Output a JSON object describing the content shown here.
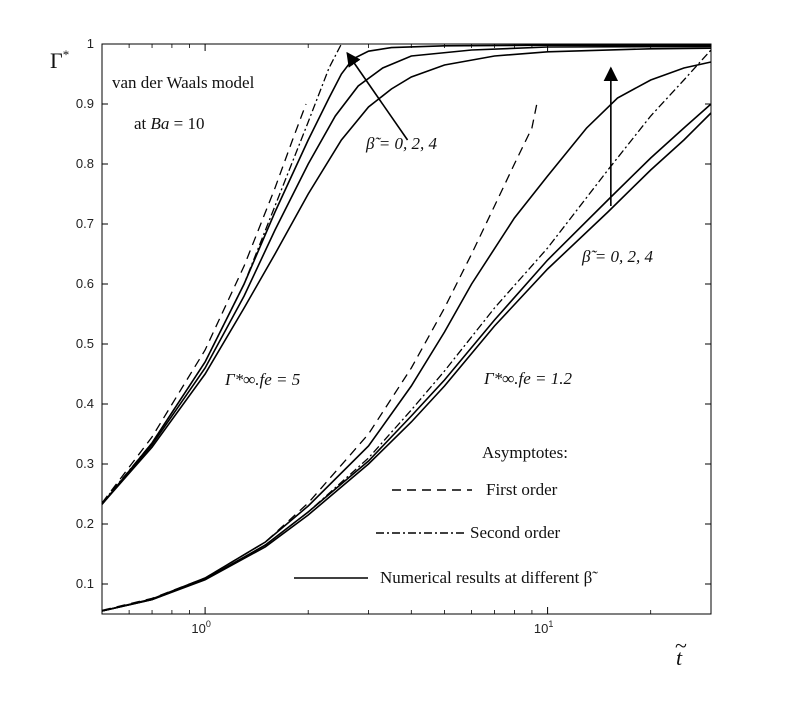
{
  "chart_data": {
    "type": "line",
    "x_scale": "log",
    "xlim": [
      0.5,
      30
    ],
    "ylim": [
      0.05,
      1.0
    ],
    "x_tick_labels": [
      {
        "x": 1,
        "base": "10",
        "exp": "0"
      },
      {
        "x": 10,
        "base": "10",
        "exp": "1"
      }
    ],
    "y_ticks": [
      0.1,
      0.2,
      0.3,
      0.4,
      0.5,
      0.6,
      0.7,
      0.8,
      0.9,
      1
    ],
    "y_tick_labels": [
      "0.1",
      "0.2",
      "0.3",
      "0.4",
      "0.5",
      "0.6",
      "0.7",
      "0.8",
      "0.9",
      "1"
    ],
    "ylabel_main": "Γ",
    "ylabel_sup": "*",
    "xlabel": "t",
    "xlabel_accent": "~",
    "annotations": {
      "model_line1": "van der Waals model",
      "model_line2_prefix": "at ",
      "model_line2_var": "Ba",
      "model_line2_suffix": " = 10",
      "beta_left": "β̃ = 0, 2, 4",
      "beta_right": "β̃ = 0, 2, 4",
      "group_high": "Γ*∞.fe = 5",
      "group_low": "Γ*∞.fe = 1.2"
    },
    "legend": {
      "title": "Asymptotes:",
      "entries": [
        {
          "label": "First order",
          "style": "dashed"
        },
        {
          "label": "Second order",
          "style": "dashdot"
        },
        {
          "label": "Numerical results at different β̃",
          "style": "solid"
        }
      ]
    },
    "series": [
      {
        "style": "solid",
        "points": [
          [
            0.5,
            0.233
          ],
          [
            0.7,
            0.335
          ],
          [
            1.0,
            0.47
          ],
          [
            1.3,
            0.6
          ],
          [
            1.6,
            0.72
          ],
          [
            2.0,
            0.84
          ],
          [
            2.3,
            0.91
          ],
          [
            2.5,
            0.95
          ],
          [
            2.7,
            0.975
          ],
          [
            3.0,
            0.988
          ],
          [
            3.5,
            0.994
          ],
          [
            5,
            0.997
          ],
          [
            10,
            0.998
          ],
          [
            30,
            0.998
          ]
        ]
      },
      {
        "style": "solid",
        "points": [
          [
            0.5,
            0.233
          ],
          [
            0.7,
            0.332
          ],
          [
            1.0,
            0.46
          ],
          [
            1.3,
            0.58
          ],
          [
            1.6,
            0.69
          ],
          [
            2.0,
            0.8
          ],
          [
            2.4,
            0.88
          ],
          [
            2.8,
            0.93
          ],
          [
            3.3,
            0.96
          ],
          [
            4,
            0.98
          ],
          [
            6,
            0.99
          ],
          [
            10,
            0.995
          ],
          [
            30,
            0.996
          ]
        ]
      },
      {
        "style": "solid",
        "points": [
          [
            0.5,
            0.233
          ],
          [
            0.7,
            0.328
          ],
          [
            1.0,
            0.45
          ],
          [
            1.3,
            0.56
          ],
          [
            1.6,
            0.65
          ],
          [
            2.0,
            0.75
          ],
          [
            2.5,
            0.84
          ],
          [
            3.0,
            0.895
          ],
          [
            3.5,
            0.925
          ],
          [
            4,
            0.945
          ],
          [
            5,
            0.965
          ],
          [
            7,
            0.98
          ],
          [
            10,
            0.987
          ],
          [
            20,
            0.992
          ],
          [
            30,
            0.993
          ]
        ]
      },
      {
        "style": "dashed",
        "points": [
          [
            0.5,
            0.235
          ],
          [
            0.7,
            0.345
          ],
          [
            1.0,
            0.49
          ],
          [
            1.3,
            0.63
          ],
          [
            1.6,
            0.76
          ],
          [
            1.8,
            0.84
          ],
          [
            1.97,
            0.9
          ]
        ]
      },
      {
        "style": "dashdot",
        "points": [
          [
            0.5,
            0.235
          ],
          [
            0.7,
            0.335
          ],
          [
            1.0,
            0.47
          ],
          [
            1.3,
            0.6
          ],
          [
            1.6,
            0.73
          ],
          [
            2.0,
            0.87
          ],
          [
            2.3,
            0.96
          ],
          [
            2.5,
            1.0
          ]
        ]
      },
      {
        "style": "solid",
        "points": [
          [
            0.5,
            0.055
          ],
          [
            0.7,
            0.075
          ],
          [
            1.0,
            0.11
          ],
          [
            1.5,
            0.17
          ],
          [
            2,
            0.23
          ],
          [
            3,
            0.33
          ],
          [
            4,
            0.43
          ],
          [
            5,
            0.52
          ],
          [
            6,
            0.6
          ],
          [
            8,
            0.71
          ],
          [
            10,
            0.78
          ],
          [
            13,
            0.86
          ],
          [
            16,
            0.91
          ],
          [
            20,
            0.94
          ],
          [
            25,
            0.96
          ],
          [
            30,
            0.97
          ]
        ]
      },
      {
        "style": "solid",
        "points": [
          [
            0.5,
            0.055
          ],
          [
            0.7,
            0.074
          ],
          [
            1.0,
            0.108
          ],
          [
            1.5,
            0.165
          ],
          [
            2,
            0.22
          ],
          [
            3,
            0.305
          ],
          [
            4,
            0.38
          ],
          [
            5,
            0.44
          ],
          [
            7,
            0.54
          ],
          [
            10,
            0.64
          ],
          [
            15,
            0.74
          ],
          [
            20,
            0.81
          ],
          [
            25,
            0.86
          ],
          [
            30,
            0.9
          ]
        ]
      },
      {
        "style": "solid",
        "points": [
          [
            0.5,
            0.055
          ],
          [
            0.7,
            0.074
          ],
          [
            1.0,
            0.107
          ],
          [
            1.5,
            0.162
          ],
          [
            2,
            0.215
          ],
          [
            3,
            0.3
          ],
          [
            4,
            0.37
          ],
          [
            5,
            0.43
          ],
          [
            7,
            0.53
          ],
          [
            10,
            0.625
          ],
          [
            15,
            0.72
          ],
          [
            20,
            0.79
          ],
          [
            25,
            0.84
          ],
          [
            30,
            0.885
          ]
        ]
      },
      {
        "style": "dashed",
        "points": [
          [
            0.5,
            0.056
          ],
          [
            0.7,
            0.076
          ],
          [
            1.0,
            0.11
          ],
          [
            1.5,
            0.17
          ],
          [
            2,
            0.235
          ],
          [
            3,
            0.35
          ],
          [
            4,
            0.46
          ],
          [
            5,
            0.56
          ],
          [
            6,
            0.65
          ],
          [
            7,
            0.73
          ],
          [
            8,
            0.8
          ],
          [
            9,
            0.86
          ],
          [
            9.3,
            0.9
          ]
        ]
      },
      {
        "style": "dashdot",
        "points": [
          [
            0.5,
            0.055
          ],
          [
            0.7,
            0.074
          ],
          [
            1.0,
            0.108
          ],
          [
            1.5,
            0.165
          ],
          [
            2,
            0.22
          ],
          [
            3,
            0.31
          ],
          [
            4,
            0.39
          ],
          [
            5,
            0.455
          ],
          [
            7,
            0.56
          ],
          [
            10,
            0.66
          ],
          [
            15,
            0.79
          ],
          [
            20,
            0.88
          ],
          [
            25,
            0.94
          ],
          [
            30,
            0.99
          ]
        ]
      }
    ]
  }
}
